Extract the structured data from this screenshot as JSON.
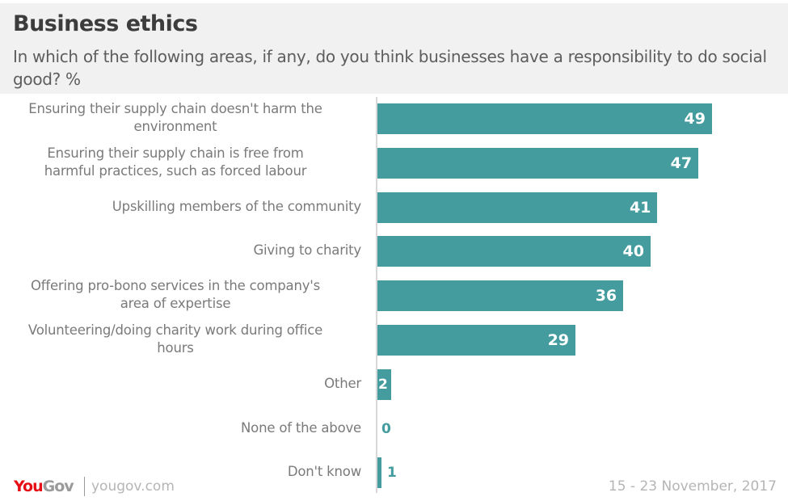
{
  "header": {
    "title": "Business ethics",
    "subtitle": "In which of the following areas, if any, do you think businesses have a responsibility to do social good? %"
  },
  "footer": {
    "logo_you": "You",
    "logo_gov": "Gov",
    "site": "yougov.com",
    "date": "15 - 23 November, 2017"
  },
  "colors": {
    "bar": "#449c9e",
    "logo_red": "#e60e14",
    "header_bg": "#f1f1f1"
  },
  "chart_data": {
    "type": "bar",
    "orientation": "horizontal",
    "title": "Business ethics",
    "subtitle": "In which of the following areas, if any, do you think businesses have a responsibility to do social good? %",
    "xlabel": "",
    "ylabel": "",
    "unit": "%",
    "categories": [
      [
        "Ensuring their supply chain doesn't harm the",
        "environment"
      ],
      [
        "Ensuring their supply chain is free from",
        "harmful practices, such as forced labour"
      ],
      [
        "Upskilling members of the community"
      ],
      [
        "Giving to charity"
      ],
      [
        "Offering pro-bono services in the company's",
        "area of expertise"
      ],
      [
        "Volunteering/doing charity work during office",
        "hours"
      ],
      [
        "Other"
      ],
      [
        "None of the above"
      ],
      [
        "Don't know"
      ]
    ],
    "values": [
      49,
      47,
      41,
      40,
      36,
      29,
      2,
      0,
      1
    ],
    "xlim": [
      0,
      60
    ],
    "grid": false,
    "legend": "none"
  }
}
